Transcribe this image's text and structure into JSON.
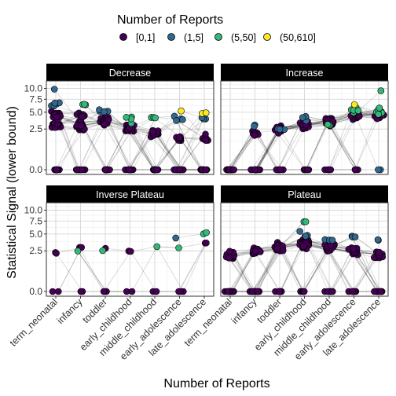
{
  "chart_data": {
    "type": "scatter",
    "xlabel": "Number of Reports",
    "ylabel": "Statistical Signal (lower bound)",
    "categories": [
      "term_neonatal",
      "infancy",
      "toddler",
      "early_childhood",
      "middle_childhood",
      "early_adolescence",
      "late_adolescence"
    ],
    "y_ticks": [
      0.0,
      2.5,
      5.0,
      7.5,
      10.0
    ],
    "y_tick_labels": [
      "0.0",
      "2.5",
      "5.0",
      "7.5",
      "10.0"
    ],
    "y_scale": "sqrt",
    "ylim": [
      0,
      11.5
    ],
    "grid": true,
    "legend": {
      "title": "Number of Reports",
      "placement": "top",
      "entries": [
        {
          "label": "[0,1]",
          "color": "#440154"
        },
        {
          "label": "(1,5]",
          "color": "#31688E"
        },
        {
          "label": "(5,50]",
          "color": "#35B779"
        },
        {
          "label": "(50,610]",
          "color": "#FDE725"
        }
      ]
    },
    "facets": [
      {
        "title": "Decrease",
        "points": [
          {
            "x": "term_neonatal",
            "y": 0.0,
            "bin": "[0,1]",
            "count": 10
          },
          {
            "x": "term_neonatal",
            "y": 3.0,
            "bin": "[0,1]",
            "count": 30
          },
          {
            "x": "term_neonatal",
            "y": 4.5,
            "bin": "[0,1]",
            "count": 15
          },
          {
            "x": "term_neonatal",
            "y": 6.0,
            "bin": "(1,5]",
            "count": 5
          },
          {
            "x": "term_neonatal",
            "y": 9.7,
            "bin": "(1,5]",
            "count": 1
          },
          {
            "x": "infancy",
            "y": 0.0,
            "bin": "[0,1]",
            "count": 10
          },
          {
            "x": "infancy",
            "y": 3.0,
            "bin": "[0,1]",
            "count": 25
          },
          {
            "x": "infancy",
            "y": 4.5,
            "bin": "[0,1]",
            "count": 10
          },
          {
            "x": "infancy",
            "y": 6.5,
            "bin": "(5,50]",
            "count": 3
          },
          {
            "x": "toddler",
            "y": 0.0,
            "bin": "[0,1]",
            "count": 10
          },
          {
            "x": "toddler",
            "y": 3.5,
            "bin": "[0,1]",
            "count": 25
          },
          {
            "x": "toddler",
            "y": 5.5,
            "bin": "(1,5]",
            "count": 4
          },
          {
            "x": "early_childhood",
            "y": 0.0,
            "bin": "[0,1]",
            "count": 10
          },
          {
            "x": "early_childhood",
            "y": 2.5,
            "bin": "[0,1]",
            "count": 20
          },
          {
            "x": "early_childhood",
            "y": 4.0,
            "bin": "(5,50]",
            "count": 4
          },
          {
            "x": "middle_childhood",
            "y": 0.0,
            "bin": "[0,1]",
            "count": 12
          },
          {
            "x": "middle_childhood",
            "y": 2.0,
            "bin": "[0,1]",
            "count": 15
          },
          {
            "x": "middle_childhood",
            "y": 4.0,
            "bin": "(5,50]",
            "count": 3
          },
          {
            "x": "early_adolescence",
            "y": 0.0,
            "bin": "[0,1]",
            "count": 14
          },
          {
            "x": "early_adolescence",
            "y": 1.5,
            "bin": "[0,1]",
            "count": 10
          },
          {
            "x": "early_adolescence",
            "y": 4.0,
            "bin": "(1,5]",
            "count": 4
          },
          {
            "x": "early_adolescence",
            "y": 5.2,
            "bin": "(50,610]",
            "count": 1
          },
          {
            "x": "late_adolescence",
            "y": 0.0,
            "bin": "[0,1]",
            "count": 14
          },
          {
            "x": "late_adolescence",
            "y": 1.5,
            "bin": "[0,1]",
            "count": 8
          },
          {
            "x": "late_adolescence",
            "y": 4.0,
            "bin": "(1,5]",
            "count": 3
          },
          {
            "x": "late_adolescence",
            "y": 4.8,
            "bin": "(50,610]",
            "count": 2
          }
        ]
      },
      {
        "title": "Increase",
        "points": [
          {
            "x": "term_neonatal",
            "y": 0.0,
            "bin": "[0,1]",
            "count": 25
          },
          {
            "x": "infancy",
            "y": 0.0,
            "bin": "[0,1]",
            "count": 15
          },
          {
            "x": "infancy",
            "y": 2.0,
            "bin": "[0,1]",
            "count": 8
          },
          {
            "x": "infancy",
            "y": 3.0,
            "bin": "(1,5]",
            "count": 2
          },
          {
            "x": "toddler",
            "y": 0.0,
            "bin": "[0,1]",
            "count": 10
          },
          {
            "x": "toddler",
            "y": 2.5,
            "bin": "[0,1]",
            "count": 15
          },
          {
            "x": "toddler",
            "y": 2.5,
            "bin": "(1,5]",
            "count": 3
          },
          {
            "x": "early_childhood",
            "y": 0.0,
            "bin": "[0,1]",
            "count": 6
          },
          {
            "x": "early_childhood",
            "y": 3.0,
            "bin": "[0,1]",
            "count": 25
          },
          {
            "x": "early_childhood",
            "y": 4.0,
            "bin": "(1,5]",
            "count": 4
          },
          {
            "x": "middle_childhood",
            "y": 0.0,
            "bin": "[0,1]",
            "count": 5
          },
          {
            "x": "middle_childhood",
            "y": 3.5,
            "bin": "[0,1]",
            "count": 25
          },
          {
            "x": "middle_childhood",
            "y": 3.0,
            "bin": "(5,50]",
            "count": 3
          },
          {
            "x": "early_adolescence",
            "y": 0.0,
            "bin": "[0,1]",
            "count": 4
          },
          {
            "x": "early_adolescence",
            "y": 4.5,
            "bin": "[0,1]",
            "count": 25
          },
          {
            "x": "early_adolescence",
            "y": 5.5,
            "bin": "(5,50]",
            "count": 5
          },
          {
            "x": "early_adolescence",
            "y": 6.5,
            "bin": "(50,610]",
            "count": 1
          },
          {
            "x": "late_adolescence",
            "y": 0.0,
            "bin": "(1,5]",
            "count": 2
          },
          {
            "x": "late_adolescence",
            "y": 4.5,
            "bin": "[0,1]",
            "count": 20
          },
          {
            "x": "late_adolescence",
            "y": 5.0,
            "bin": "(5,50]",
            "count": 5
          },
          {
            "x": "late_adolescence",
            "y": 9.3,
            "bin": "(5,50]",
            "count": 1
          }
        ]
      },
      {
        "title": "Inverse Plateau",
        "points": [
          {
            "x": "term_neonatal",
            "y": 0.0,
            "bin": "[0,1]",
            "count": 2
          },
          {
            "x": "term_neonatal",
            "y": 2.2,
            "bin": "[0,1]",
            "count": 2
          },
          {
            "x": "infancy",
            "y": 0.0,
            "bin": "[0,1]",
            "count": 2
          },
          {
            "x": "infancy",
            "y": 3.0,
            "bin": "[0,1]",
            "count": 2
          },
          {
            "x": "infancy",
            "y": 2.5,
            "bin": "(5,50]",
            "count": 1
          },
          {
            "x": "toddler",
            "y": 0.0,
            "bin": "[0,1]",
            "count": 3
          },
          {
            "x": "toddler",
            "y": 2.5,
            "bin": "(5,50]",
            "count": 1
          },
          {
            "x": "toddler",
            "y": 3.0,
            "bin": "[0,1]",
            "count": 1
          },
          {
            "x": "early_childhood",
            "y": 0.0,
            "bin": "[0,1]",
            "count": 2
          },
          {
            "x": "early_childhood",
            "y": 2.5,
            "bin": "[0,1]",
            "count": 2
          },
          {
            "x": "middle_childhood",
            "y": 0.0,
            "bin": "[0,1]",
            "count": 2
          },
          {
            "x": "middle_childhood",
            "y": 3.0,
            "bin": "(5,50]",
            "count": 1
          },
          {
            "x": "early_adolescence",
            "y": 0.0,
            "bin": "[0,1]",
            "count": 3
          },
          {
            "x": "early_adolescence",
            "y": 3.0,
            "bin": "(5,50]",
            "count": 1
          },
          {
            "x": "early_adolescence",
            "y": 4.2,
            "bin": "(1,5]",
            "count": 1
          },
          {
            "x": "late_adolescence",
            "y": 3.5,
            "bin": "[0,1]",
            "count": 2
          },
          {
            "x": "late_adolescence",
            "y": 5.2,
            "bin": "(5,50]",
            "count": 2
          }
        ]
      },
      {
        "title": "Plateau",
        "points": [
          {
            "x": "term_neonatal",
            "y": 0.0,
            "bin": "[0,1]",
            "count": 20
          },
          {
            "x": "term_neonatal",
            "y": 2.0,
            "bin": "[0,1]",
            "count": 15
          },
          {
            "x": "infancy",
            "y": 0.0,
            "bin": "[0,1]",
            "count": 15
          },
          {
            "x": "infancy",
            "y": 2.5,
            "bin": "[0,1]",
            "count": 25
          },
          {
            "x": "toddler",
            "y": 0.0,
            "bin": "[0,1]",
            "count": 10
          },
          {
            "x": "toddler",
            "y": 3.0,
            "bin": "[0,1]",
            "count": 30
          },
          {
            "x": "early_childhood",
            "y": 0.0,
            "bin": "[0,1]",
            "count": 5
          },
          {
            "x": "early_childhood",
            "y": 3.5,
            "bin": "[0,1]",
            "count": 35
          },
          {
            "x": "early_childhood",
            "y": 5.0,
            "bin": "(1,5]",
            "count": 4
          },
          {
            "x": "early_childhood",
            "y": 7.5,
            "bin": "(5,50]",
            "count": 2
          },
          {
            "x": "middle_childhood",
            "y": 0.0,
            "bin": "[0,1]",
            "count": 8
          },
          {
            "x": "middle_childhood",
            "y": 3.0,
            "bin": "[0,1]",
            "count": 30
          },
          {
            "x": "middle_childhood",
            "y": 4.0,
            "bin": "(1,5]",
            "count": 3
          },
          {
            "x": "early_adolescence",
            "y": 0.0,
            "bin": "[0,1]",
            "count": 10
          },
          {
            "x": "early_adolescence",
            "y": 2.5,
            "bin": "[0,1]",
            "count": 25
          },
          {
            "x": "early_adolescence",
            "y": 4.5,
            "bin": "(1,5]",
            "count": 3
          },
          {
            "x": "late_adolescence",
            "y": 0.0,
            "bin": "[0,1]",
            "count": 12
          },
          {
            "x": "late_adolescence",
            "y": 2.0,
            "bin": "[0,1]",
            "count": 20
          },
          {
            "x": "late_adolescence",
            "y": 4.0,
            "bin": "(1,5]",
            "count": 2
          }
        ]
      }
    ]
  }
}
